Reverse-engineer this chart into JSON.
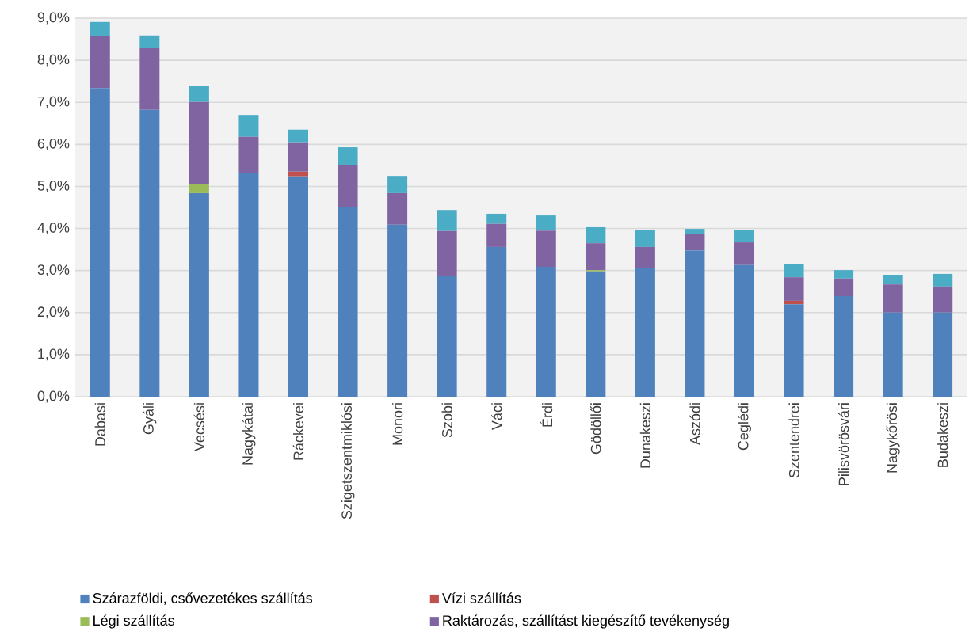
{
  "chart_data": {
    "type": "bar",
    "stacked": true,
    "grid": "y",
    "legend": "bottom",
    "categories": [
      "Dabasi",
      "Gyáli",
      "Vecsési",
      "Nagykátai",
      "Ráckevei",
      "Szigetszentmiklósi",
      "Monori",
      "Szobi",
      "Váci",
      "Érdi",
      "Gödöllői",
      "Dunakeszi",
      "Aszódi",
      "Ceglédi",
      "Szentendrei",
      "Pilisvörösvári",
      "Nagykőrösi",
      "Budakeszi"
    ],
    "ylim": [
      0,
      9
    ],
    "yticks": [
      {
        "value": 0,
        "label": "0,0%"
      },
      {
        "value": 1,
        "label": "1,0%"
      },
      {
        "value": 2,
        "label": "2,0%"
      },
      {
        "value": 3,
        "label": "3,0%"
      },
      {
        "value": 4,
        "label": "4,0%"
      },
      {
        "value": 5,
        "label": "5,0%"
      },
      {
        "value": 6,
        "label": "6,0%"
      },
      {
        "value": 7,
        "label": "7,0%"
      },
      {
        "value": 8,
        "label": "8,0%"
      },
      {
        "value": 9,
        "label": "9,0%"
      }
    ],
    "series": [
      {
        "name": "Szárazföldi, csővezetékes szállítás",
        "color": "#4f81bd",
        "values": [
          7.34,
          6.82,
          4.84,
          5.33,
          5.24,
          4.5,
          4.09,
          2.88,
          3.56,
          3.09,
          2.98,
          3.05,
          3.48,
          3.13,
          2.2,
          2.39,
          2.0,
          2.0
        ]
      },
      {
        "name": "Vízi szállítás",
        "color": "#c0504d",
        "values": [
          0,
          0,
          0,
          0,
          0.11,
          0,
          0,
          0,
          0,
          0,
          0,
          0,
          0,
          0,
          0.08,
          0,
          0,
          0
        ]
      },
      {
        "name": "Légi szállítás",
        "color": "#9bbb59",
        "values": [
          0,
          0,
          0.21,
          0,
          0,
          0,
          0,
          0,
          0,
          0,
          0.03,
          0,
          0,
          0,
          0,
          0,
          0,
          0
        ]
      },
      {
        "name": "Raktározás, szállítást kiegészítő tevékenység",
        "color": "#8064a2",
        "values": [
          1.23,
          1.47,
          1.96,
          0.85,
          0.7,
          1.0,
          0.75,
          1.06,
          0.55,
          0.86,
          0.64,
          0.51,
          0.38,
          0.54,
          0.56,
          0.42,
          0.67,
          0.62
        ]
      },
      {
        "color": "#4bacc6",
        "values": [
          0.34,
          0.3,
          0.39,
          0.52,
          0.3,
          0.43,
          0.41,
          0.5,
          0.24,
          0.36,
          0.38,
          0.41,
          0.13,
          0.3,
          0.32,
          0.2,
          0.23,
          0.3
        ]
      }
    ]
  }
}
